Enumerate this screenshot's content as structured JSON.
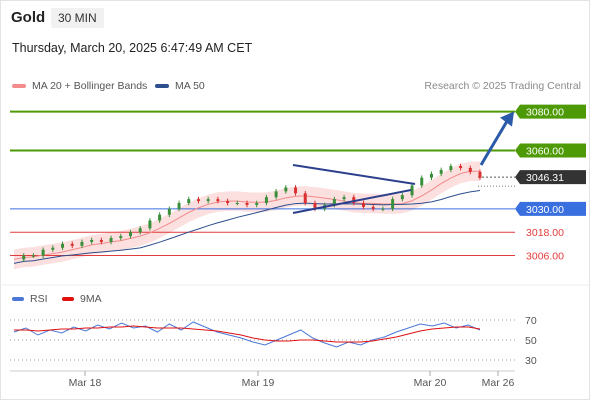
{
  "header": {
    "asset": "Gold",
    "timeframe": "30 MIN",
    "timestamp": "Thursday, March 20, 2025 6:47:49 AM CET"
  },
  "legend": {
    "items": [
      {
        "label": "MA 20 + Bollinger Bands",
        "color": "#f28b8b"
      },
      {
        "label": "MA 50",
        "color": "#2d4f8e"
      }
    ],
    "copyright": "Research © 2025 Trading Central"
  },
  "rsi_legend": {
    "items": [
      {
        "label": "RSI",
        "color": "#4b78d6"
      },
      {
        "label": "9MA",
        "color": "#e01010"
      }
    ]
  },
  "colors": {
    "target": "#4e9a06",
    "pivot": "#3a6fe0",
    "support": "#e23b3b",
    "price": "#333333",
    "bull_candle": "#3a8f3a",
    "bear_candle": "#d93030",
    "bollinger": "#fbd9d9",
    "ma50": "#2d4f8e",
    "arrow": "#2b5aa8"
  },
  "chart_data": [
    {
      "type": "candlestick",
      "title": "",
      "x_ticks": [
        "Mar 18",
        "Mar 19",
        "Mar 20",
        "Mar 26"
      ],
      "y_range": [
        2996,
        3088
      ],
      "levels": [
        {
          "value": 3080.0,
          "label": "3080.00",
          "kind": "resistance"
        },
        {
          "value": 3060.0,
          "label": "3060.00",
          "kind": "resistance"
        },
        {
          "value": 3046.31,
          "label": "3046.31",
          "kind": "last-price"
        },
        {
          "value": 3030.0,
          "label": "3030.00",
          "kind": "pivot"
        },
        {
          "value": 3018.0,
          "label": "3018.00",
          "kind": "support"
        },
        {
          "value": 3006.0,
          "label": "3006.00",
          "kind": "support"
        }
      ],
      "close_series": [
        3004,
        3006,
        3006,
        3009,
        3010,
        3012,
        3011,
        3013,
        3014,
        3013,
        3015,
        3016,
        3018,
        3020,
        3024,
        3027,
        3030,
        3033,
        3035,
        3034,
        3035,
        3034,
        3033,
        3033,
        3032,
        3033,
        3036,
        3039,
        3041,
        3038,
        3033,
        3030,
        3032,
        3035,
        3036,
        3033,
        3031,
        3030,
        3030,
        3035,
        3037,
        3042,
        3046,
        3048,
        3050,
        3052,
        3051,
        3049,
        3046
      ],
      "annotations": [
        {
          "type": "symmetrical-triangle",
          "from": "Mar 19",
          "to": "Mar 20"
        },
        {
          "type": "projection-arrow",
          "target": 3080.0
        }
      ]
    },
    {
      "type": "line",
      "title": "RSI",
      "y_ticks": [
        70,
        50,
        30
      ],
      "series": [
        {
          "name": "RSI",
          "values": [
            58,
            62,
            55,
            60,
            57,
            63,
            59,
            65,
            61,
            67,
            62,
            64,
            58,
            66,
            60,
            68,
            63,
            58,
            55,
            52,
            48,
            45,
            50,
            55,
            60,
            52,
            47,
            43,
            48,
            45,
            50,
            53,
            58,
            62,
            66,
            64,
            67,
            62,
            65,
            60
          ]
        },
        {
          "name": "9MA",
          "values": [
            60,
            60,
            59,
            60,
            61,
            61,
            62,
            62,
            63,
            63,
            64,
            63,
            62,
            62,
            62,
            61,
            60,
            59,
            57,
            55,
            52,
            50,
            49,
            49,
            50,
            50,
            49,
            48,
            48,
            48,
            49,
            51,
            53,
            56,
            59,
            61,
            62,
            63,
            63,
            61
          ]
        }
      ]
    }
  ]
}
